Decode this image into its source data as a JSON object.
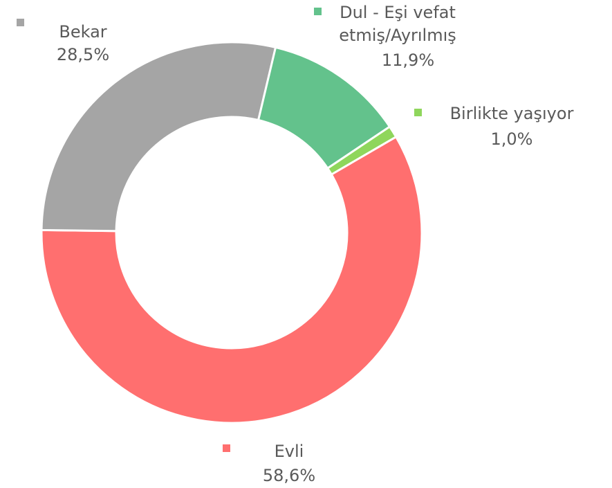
{
  "chart_data": {
    "type": "donut",
    "categories": [
      "Evli",
      "Bekar",
      "Dul - Eşi vefat etmiş/Ayrılmış",
      "Birlikte yaşıyor"
    ],
    "values": [
      58.6,
      28.5,
      11.9,
      1.0
    ],
    "value_labels": [
      "58,6%",
      "28,5%",
      "11,9%",
      "1,0%"
    ],
    "colors": [
      "#ff6f6f",
      "#a5a5a5",
      "#63c28c",
      "#8fd65c"
    ]
  }
}
